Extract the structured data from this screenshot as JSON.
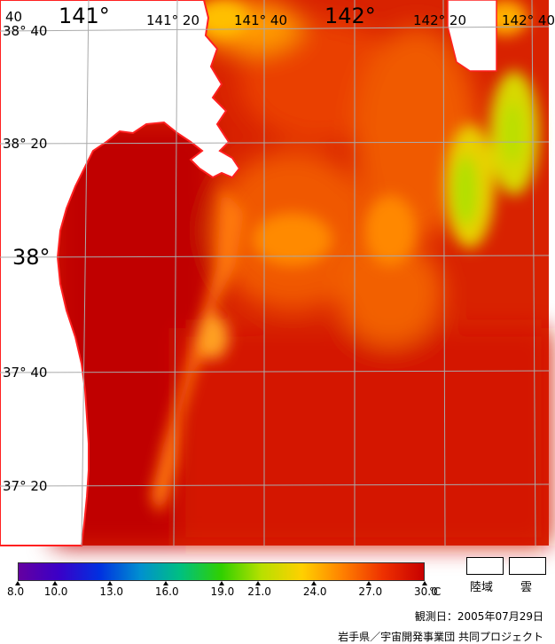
{
  "map": {
    "grid_labels": {
      "lon": [
        "141°",
        "141° 20",
        "141° 40",
        "142°",
        "142° 20",
        "142° 40"
      ],
      "lat": [
        "38° 40",
        "38° 20",
        "38°",
        "37° 40",
        "37° 20"
      ],
      "corner": "40"
    },
    "colors": {
      "land": "#ffffff",
      "coast": "#ff2020",
      "grid": "#aaaaaa",
      "sea_hot": "#c80000",
      "sea_warm": "#e02a00",
      "sea_mid": "#f04a00",
      "sea_orange": "#ff7a00",
      "sea_yellow": "#ffc000",
      "sea_green": "#a8e000"
    }
  },
  "legend": {
    "ticks": [
      "8.0",
      "10.0",
      "13.0",
      "16.0",
      "19.0",
      "21.0",
      "24.0",
      "27.0",
      "30.0"
    ],
    "unit": "℃",
    "gradient_colors": [
      "#6400a0",
      "#3a00c8",
      "#0030e0",
      "#0090d0",
      "#00c080",
      "#30d000",
      "#b8e000",
      "#ffd000",
      "#ff8000",
      "#ee3000",
      "#c80000"
    ],
    "swatches": [
      {
        "label": "陸域"
      },
      {
        "label": "雲"
      }
    ]
  },
  "footer": {
    "obs_date": "観測日：2005年07月29日",
    "credit": "岩手県／宇宙開発事業団 共同プロジェクト"
  }
}
